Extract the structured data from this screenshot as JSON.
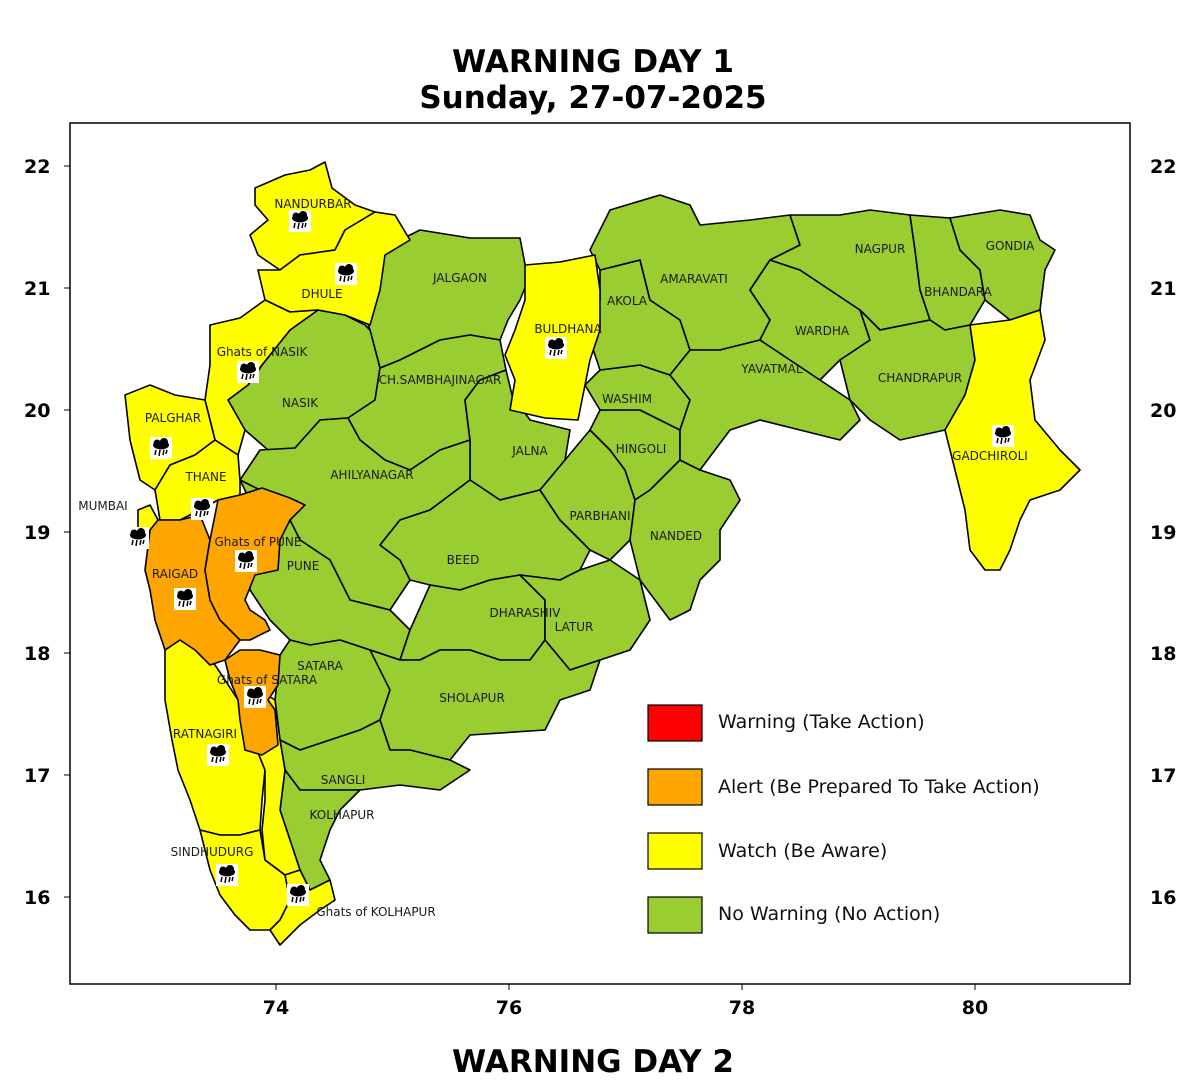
{
  "title": "WARNING DAY 1",
  "subtitle": "Sunday, 27-07-2025",
  "next_title": "WARNING DAY 2",
  "colors": {
    "warning": "#ff0000",
    "alert": "#ffa500",
    "watch": "#ffff00",
    "no_warning": "#9acd32"
  },
  "axes": {
    "x_ticks": [
      "74",
      "76",
      "78",
      "80"
    ],
    "y_ticks": [
      "22",
      "21",
      "20",
      "19",
      "18",
      "17",
      "16"
    ]
  },
  "legend": [
    {
      "label": "Warning (Take Action)",
      "level": "warning"
    },
    {
      "label": "Alert (Be Prepared To Take Action)",
      "level": "alert"
    },
    {
      "label": "Watch (Be Aware)",
      "level": "watch"
    },
    {
      "label": "No Warning (No Action)",
      "level": "no_warning"
    }
  ],
  "districts": [
    {
      "name": "NANDURBAR",
      "level": "watch",
      "rain_icon": true
    },
    {
      "name": "DHULE",
      "level": "watch",
      "rain_icon": true
    },
    {
      "name": "Ghats of NASIK",
      "level": "watch",
      "rain_icon": true
    },
    {
      "name": "PALGHAR",
      "level": "watch",
      "rain_icon": true
    },
    {
      "name": "THANE",
      "level": "watch",
      "rain_icon": true
    },
    {
      "name": "MUMBAI",
      "level": "watch",
      "rain_icon": true
    },
    {
      "name": "RAIGAD",
      "level": "alert",
      "rain_icon": true
    },
    {
      "name": "Ghats of PUNE",
      "level": "alert",
      "rain_icon": true
    },
    {
      "name": "Ghats of SATARA",
      "level": "alert",
      "rain_icon": true
    },
    {
      "name": "RATNAGIRI",
      "level": "watch",
      "rain_icon": true
    },
    {
      "name": "SINDHUDURG",
      "level": "watch",
      "rain_icon": true
    },
    {
      "name": "Ghats of KOLHAPUR",
      "level": "watch",
      "rain_icon": true
    },
    {
      "name": "BULDHANA",
      "level": "watch",
      "rain_icon": true
    },
    {
      "name": "GADCHIROLI",
      "level": "watch",
      "rain_icon": true
    },
    {
      "name": "JALGAON",
      "level": "no_warning"
    },
    {
      "name": "AKOLA",
      "level": "no_warning"
    },
    {
      "name": "AMARAVATI",
      "level": "no_warning"
    },
    {
      "name": "NAGPUR",
      "level": "no_warning"
    },
    {
      "name": "GONDIA",
      "level": "no_warning"
    },
    {
      "name": "BHANDARA",
      "level": "no_warning"
    },
    {
      "name": "WARDHA",
      "level": "no_warning"
    },
    {
      "name": "YAVATMAL",
      "level": "no_warning"
    },
    {
      "name": "CHANDRAPUR",
      "level": "no_warning"
    },
    {
      "name": "WASHIM",
      "level": "no_warning"
    },
    {
      "name": "CH.SAMBHAJINAGAR",
      "level": "no_warning"
    },
    {
      "name": "NASIK",
      "level": "no_warning"
    },
    {
      "name": "JALNA",
      "level": "no_warning"
    },
    {
      "name": "HINGOLI",
      "level": "no_warning"
    },
    {
      "name": "AHILYANAGAR",
      "level": "no_warning"
    },
    {
      "name": "PARBHANI",
      "level": "no_warning"
    },
    {
      "name": "NANDED",
      "level": "no_warning"
    },
    {
      "name": "PUNE",
      "level": "no_warning"
    },
    {
      "name": "BEED",
      "level": "no_warning"
    },
    {
      "name": "DHARASHIV",
      "level": "no_warning"
    },
    {
      "name": "LATUR",
      "level": "no_warning"
    },
    {
      "name": "SATARA",
      "level": "no_warning"
    },
    {
      "name": "SHOLAPUR",
      "level": "no_warning"
    },
    {
      "name": "SANGLI",
      "level": "no_warning"
    },
    {
      "name": "KOLHAPUR",
      "level": "no_warning"
    }
  ]
}
